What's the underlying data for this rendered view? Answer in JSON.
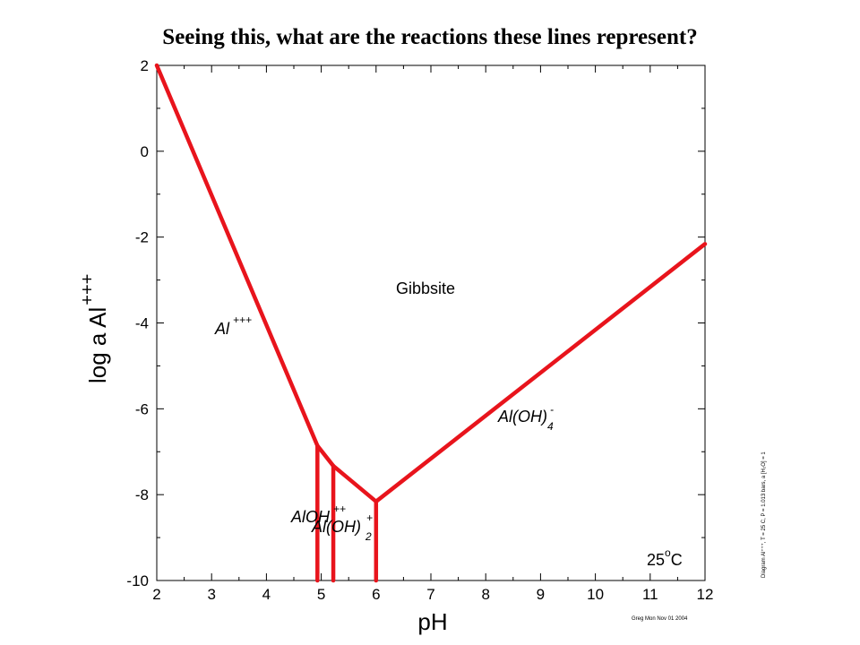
{
  "slide_title": "Seeing this, what are the reactions these lines represent?",
  "chart_data": {
    "type": "line",
    "xlabel": "pH",
    "ylabel": "log a Al",
    "ylabel_sup": "+++",
    "xlim": [
      2,
      12
    ],
    "ylim": [
      -10,
      2
    ],
    "x_ticks": [
      "2",
      "3",
      "4",
      "5",
      "6",
      "7",
      "8",
      "9",
      "10",
      "11",
      "12"
    ],
    "y_ticks": [
      "2",
      "0",
      "-2",
      "-4",
      "-6",
      "-8",
      "-10"
    ],
    "line_color": "#e8141c",
    "boundary_lines": [
      {
        "points": [
          [
            2,
            2
          ],
          [
            4.93,
            -6.86
          ]
        ]
      },
      {
        "points": [
          [
            4.93,
            -6.86
          ],
          [
            5.22,
            -7.33
          ]
        ]
      },
      {
        "points": [
          [
            5.22,
            -7.33
          ],
          [
            6.0,
            -8.16
          ]
        ]
      },
      {
        "points": [
          [
            6.0,
            -8.16
          ],
          [
            12,
            -2.16
          ]
        ]
      },
      {
        "points": [
          [
            4.93,
            -6.86
          ],
          [
            4.93,
            -10
          ]
        ]
      },
      {
        "points": [
          [
            5.22,
            -7.33
          ],
          [
            5.22,
            -10
          ]
        ]
      },
      {
        "points": [
          [
            6.0,
            -8.16
          ],
          [
            6.0,
            -10
          ]
        ]
      }
    ],
    "region_labels": {
      "gibbsite": "Gibbsite",
      "al3": {
        "base": "Al",
        "sup": "+++"
      },
      "aloh4": {
        "base": "Al(OH)",
        "sup": "-",
        "sub": "4"
      },
      "aloh": {
        "base": "AlOH",
        "sup": "++"
      },
      "aloh2": {
        "base": "Al(OH)",
        "sup": "+",
        "sub": "2"
      },
      "temperature": {
        "base": "25",
        "sup": "o",
        "tail": "C"
      }
    },
    "side_note": "Diagram Al⁺⁺⁺, T = 25 C, P = 1.013 bars, a [H₂O] = 1",
    "footer_note": "Greg Mon Nov 01 2004"
  }
}
